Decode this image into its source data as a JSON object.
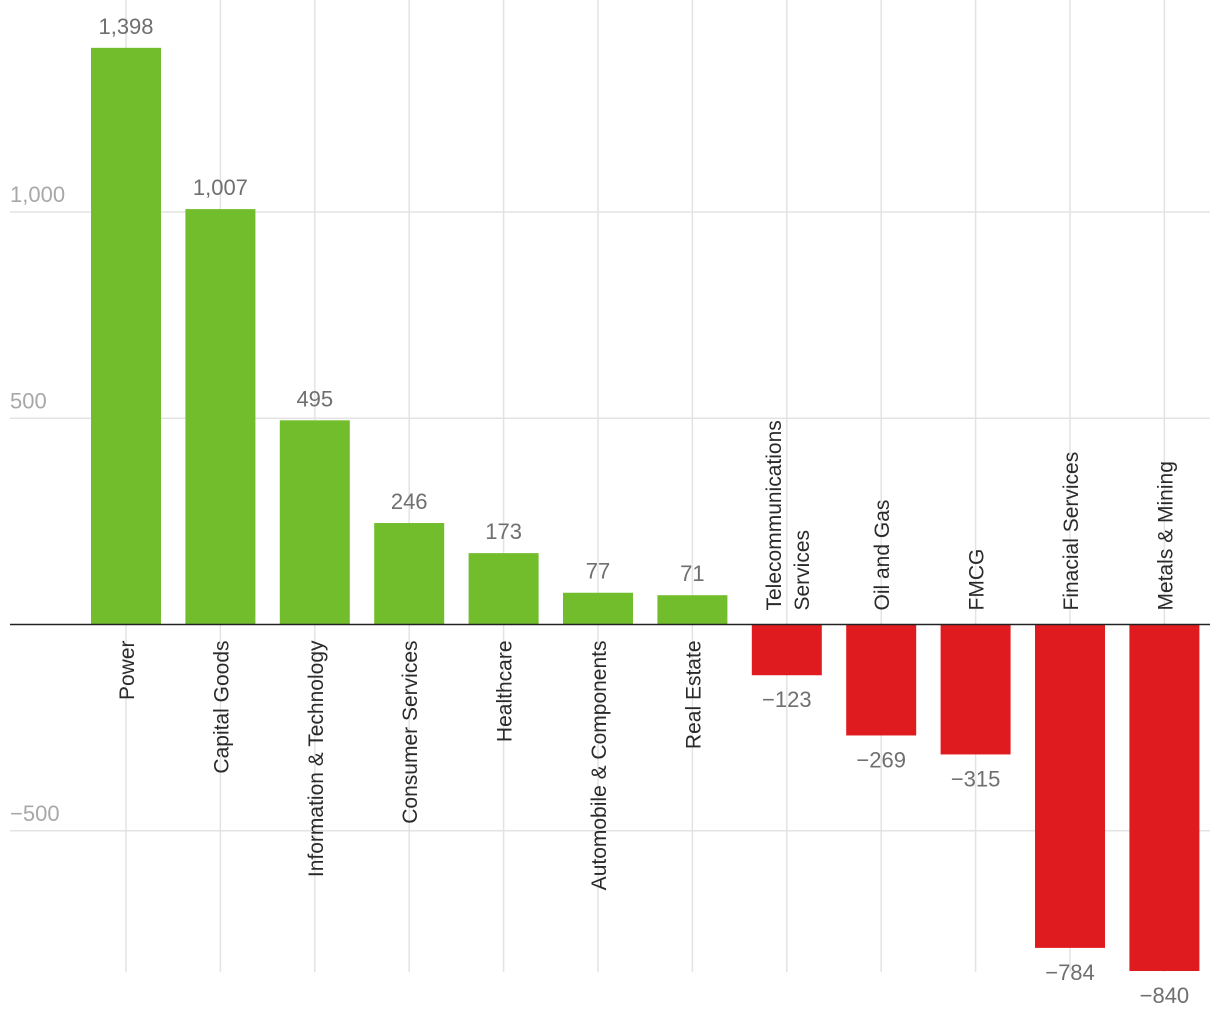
{
  "colors": {
    "positive": "#72bd2c",
    "negative": "#e01b1f",
    "grid": "#e3e3e3",
    "axis": "#222222",
    "tick_text": "#a8a8a8",
    "value_text": "#6f6f6f",
    "category_text": "#2a2a2a"
  },
  "chart_data": {
    "type": "bar",
    "title": "",
    "xlabel": "",
    "ylabel": "",
    "ylim": [
      -840,
      1398
    ],
    "yticks": [
      -500,
      500,
      1000
    ],
    "ytick_labels": [
      "−500",
      "500",
      "1,000"
    ],
    "grid": true,
    "legend": "none",
    "categories": [
      "Power",
      "Capital Goods",
      "Information & Technology",
      "Consumer Services",
      "Healthcare",
      "Automobile & Components",
      "Real Estate",
      "Telecommunications Services",
      "Oil and Gas",
      "FMCG",
      "Finacial Services",
      "Metals & Mining"
    ],
    "values": [
      1398,
      1007,
      495,
      246,
      173,
      77,
      71,
      -123,
      -269,
      -315,
      -784,
      -840
    ],
    "value_labels": [
      "1,398",
      "1,007",
      "495",
      "246",
      "173",
      "77",
      "71",
      "−123",
      "−269",
      "−315",
      "−784",
      "−840"
    ]
  }
}
